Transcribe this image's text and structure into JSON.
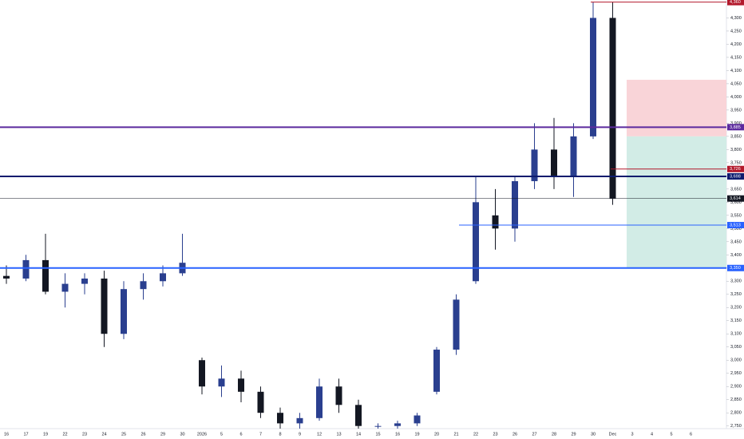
{
  "chart_data": {
    "type": "candlestick",
    "categories": [
      "16",
      "17",
      "19",
      "22",
      "23",
      "24",
      "25",
      "26",
      "29",
      "30",
      "2026",
      "5",
      "6",
      "7",
      "8",
      "9",
      "12",
      "13",
      "14",
      "15",
      "16",
      "19",
      "20",
      "21",
      "22",
      "23",
      "26",
      "27",
      "28",
      "29",
      "30",
      "Dec",
      "3",
      "4",
      "5",
      "6"
    ],
    "series": [
      {
        "name": "price",
        "up_color": "#2a3f8f",
        "down_color": "#131722",
        "open": [
          3320,
          3310,
          3380,
          3260,
          3290,
          3310,
          3100,
          3270,
          3300,
          3330,
          3000,
          2900,
          2930,
          2880,
          2800,
          2760,
          2780,
          2900,
          2830,
          2750,
          2750,
          2760,
          2880,
          3040,
          3300,
          3550,
          3500,
          3680,
          3800,
          3700,
          3850,
          4300,
          null,
          null,
          null,
          null
        ],
        "high": [
          3360,
          3400,
          3480,
          3330,
          3330,
          3340,
          3300,
          3330,
          3360,
          3480,
          3010,
          2980,
          2960,
          2900,
          2820,
          2800,
          2930,
          2930,
          2850,
          2760,
          2770,
          2800,
          3050,
          3250,
          3700,
          3650,
          3700,
          3900,
          3920,
          3900,
          4360,
          4360,
          null,
          null,
          null,
          null
        ],
        "low": [
          3290,
          3300,
          3250,
          3200,
          3250,
          3050,
          3080,
          3230,
          3280,
          3320,
          2870,
          2860,
          2840,
          2780,
          2740,
          2740,
          2770,
          2800,
          2740,
          2740,
          2740,
          2750,
          2870,
          3020,
          3290,
          3420,
          3450,
          3650,
          3650,
          3620,
          3840,
          3590,
          null,
          null,
          null,
          null
        ],
        "close": [
          3310,
          3380,
          3260,
          3290,
          3310,
          3100,
          3270,
          3300,
          3330,
          3370,
          2900,
          2930,
          2880,
          2800,
          2760,
          2780,
          2900,
          2830,
          2750,
          2750,
          2760,
          2790,
          3040,
          3230,
          3600,
          3500,
          3680,
          3800,
          3700,
          3850,
          4300,
          3614,
          null,
          null,
          null,
          null
        ]
      }
    ],
    "levels": [
      {
        "value": 4360,
        "label": "4,360",
        "color": "#b2182b",
        "width": 1
      },
      {
        "value": 3885,
        "label": "3,885",
        "color": "#5b2a9e",
        "width": 2
      },
      {
        "value": 3726,
        "label": "3,726",
        "color": "#b2182b",
        "width": 1
      },
      {
        "value": 3698,
        "label": "3,698",
        "color": "#0d1b6e",
        "width": 2
      },
      {
        "value": 3614,
        "label": "3,614",
        "color": "#131722",
        "width": 0.5
      },
      {
        "value": 3513,
        "label": "3,513",
        "color": "#2962ff",
        "width": 1
      },
      {
        "value": 3350,
        "label": "3,350",
        "color": "#2962ff",
        "width": 2
      }
    ],
    "position": {
      "stop": 4065,
      "entry": 3850,
      "target": 3350,
      "risk_color": "#f9d4d8",
      "reward_color": "#d2ece6"
    },
    "ylim": [
      2740,
      4368
    ],
    "yticks": [
      {
        "value": 2750,
        "label": "2,750"
      },
      {
        "value": 2800,
        "label": "2,800"
      },
      {
        "value": 2850,
        "label": "2,850"
      },
      {
        "value": 2900,
        "label": "2,900"
      },
      {
        "value": 2950,
        "label": "2,950"
      },
      {
        "value": 3000,
        "label": "3,000"
      },
      {
        "value": 3050,
        "label": "3,050"
      },
      {
        "value": 3100,
        "label": "3,100"
      },
      {
        "value": 3150,
        "label": "3,150"
      },
      {
        "value": 3200,
        "label": "3,200"
      },
      {
        "value": 3250,
        "label": "3,250"
      },
      {
        "value": 3300,
        "label": "3,300"
      },
      {
        "value": 3350,
        "label": "3,350"
      },
      {
        "value": 3400,
        "label": "3,400"
      },
      {
        "value": 3450,
        "label": "3,450"
      },
      {
        "value": 3500,
        "label": "3,500"
      },
      {
        "value": 3550,
        "label": "3,550"
      },
      {
        "value": 3600,
        "label": "3,600"
      },
      {
        "value": 3650,
        "label": "3,650"
      },
      {
        "value": 3700,
        "label": "3,700"
      },
      {
        "value": 3750,
        "label": "3,750"
      },
      {
        "value": 3800,
        "label": "3,800"
      },
      {
        "value": 3850,
        "label": "3,850"
      },
      {
        "value": 3900,
        "label": "3,900"
      },
      {
        "value": 3950,
        "label": "3,950"
      },
      {
        "value": 4000,
        "label": "4,000"
      },
      {
        "value": 4050,
        "label": "4,050"
      },
      {
        "value": 4100,
        "label": "4,100"
      },
      {
        "value": 4150,
        "label": "4,150"
      },
      {
        "value": 4200,
        "label": "4,200"
      },
      {
        "value": 4250,
        "label": "4,250"
      },
      {
        "value": 4300,
        "label": "4,300"
      }
    ]
  }
}
